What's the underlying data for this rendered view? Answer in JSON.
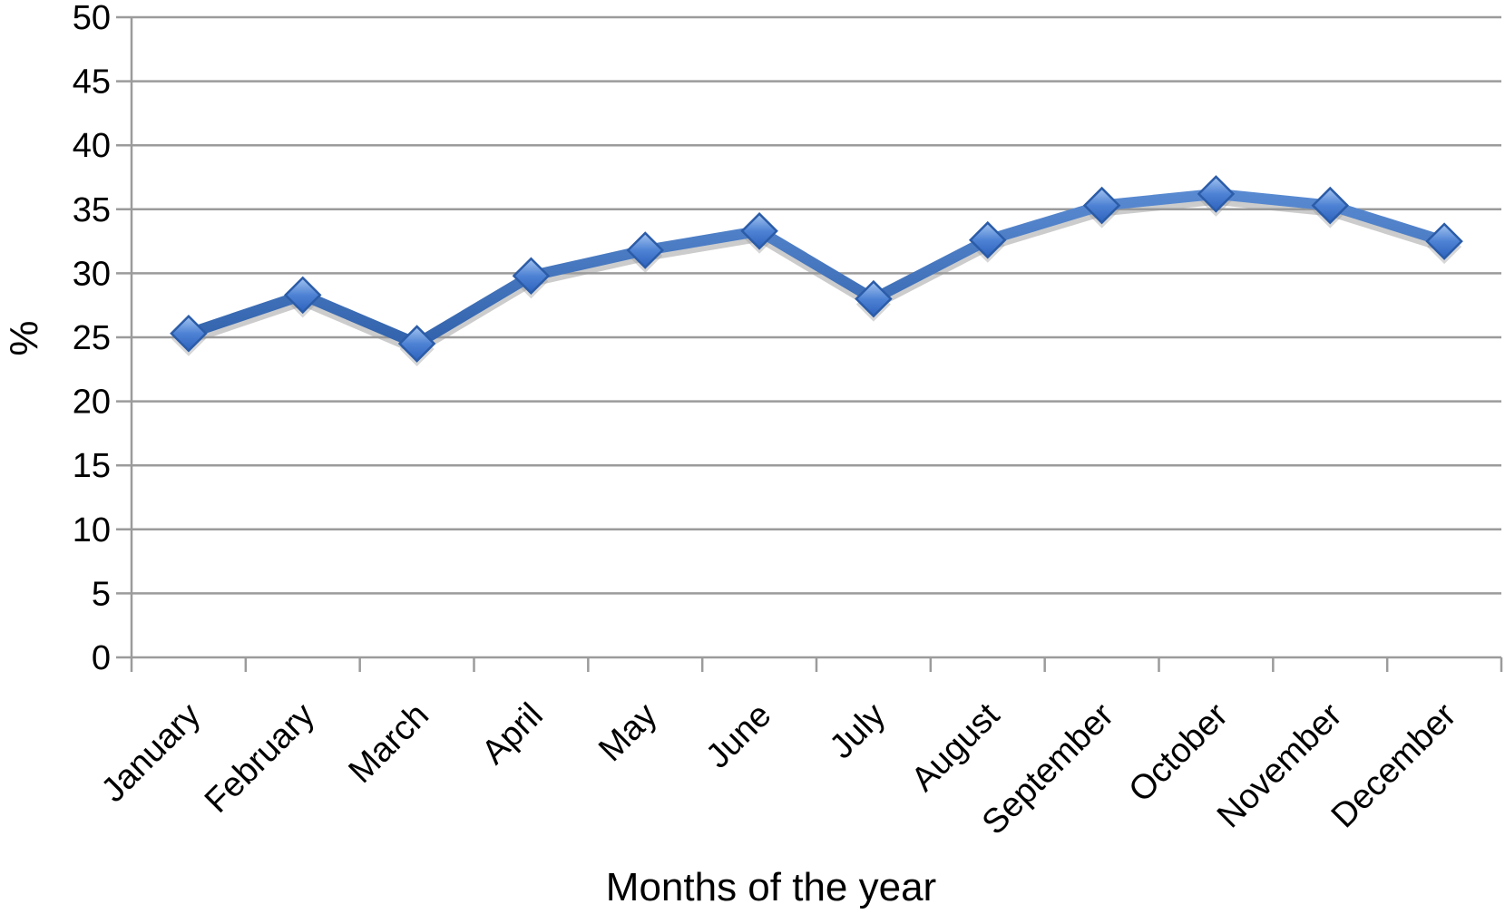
{
  "figure": {
    "background": "#FFFFFF"
  },
  "chart_data": {
    "type": "line",
    "title": "",
    "xlabel": "Months of the year",
    "ylabel": "%",
    "categories": [
      "January",
      "February",
      "March",
      "April",
      "May",
      "June",
      "July",
      "August",
      "September",
      "October",
      "November",
      "December"
    ],
    "values": [
      25.3,
      28.3,
      24.5,
      29.8,
      31.8,
      33.3,
      28.0,
      32.6,
      35.3,
      36.2,
      35.3,
      32.5
    ],
    "ylim": [
      0,
      50
    ],
    "ytick_interval": 5,
    "ytick_labels": [
      "0",
      "5",
      "10",
      "15",
      "20",
      "25",
      "30",
      "35",
      "40",
      "45",
      "50"
    ],
    "grid": "horizontal",
    "legend": "none",
    "marker_shape": "diamond",
    "colors": {
      "line_top": "#5C8DD4",
      "line_bottom": "#2E5FA8",
      "marker_top": "#A3C4F0",
      "marker_mid": "#4E82D4",
      "marker_bottom": "#2E63BE",
      "marker_stroke": "#2B5CA8",
      "shadow": "#9A9A9A",
      "gridline": "#9B9B9B",
      "axis": "#9B9B9B",
      "text": "#000000",
      "background": "#FFFFFF"
    }
  }
}
